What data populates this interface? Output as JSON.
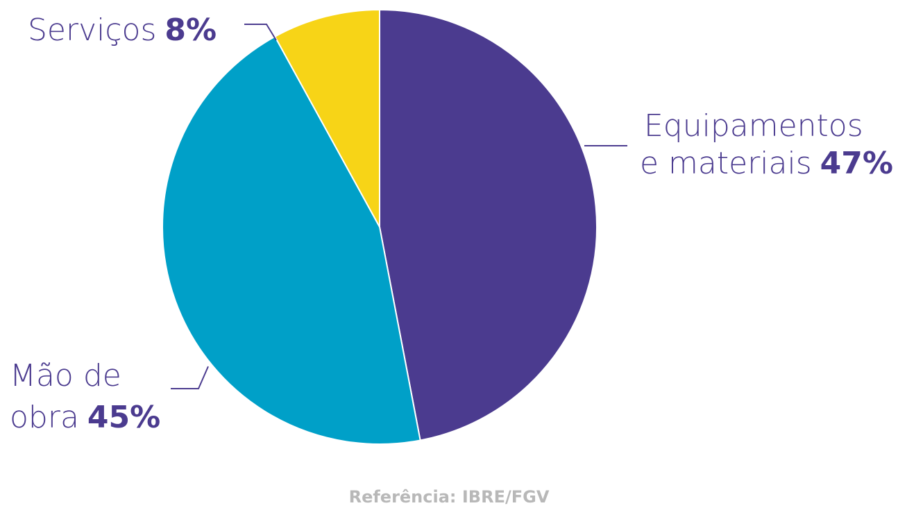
{
  "chart_data": {
    "type": "pie",
    "start": "top",
    "direction": "clockwise",
    "slices": [
      {
        "key": "equipamentos",
        "lines": [
          "Equipamentos",
          "e materiais"
        ],
        "percent_label": "47%",
        "value": 47,
        "color": "#4b3b8f"
      },
      {
        "key": "mao_de_obra",
        "lines": [
          "Mão de",
          "obra"
        ],
        "percent_label": "45%",
        "value": 45,
        "color": "#00a0c8"
      },
      {
        "key": "servicos",
        "lines": [
          "Serviços"
        ],
        "percent_label": "8%",
        "value": 8,
        "color": "#f7d417"
      }
    ],
    "source": "Referência: IBRE/FGV"
  }
}
